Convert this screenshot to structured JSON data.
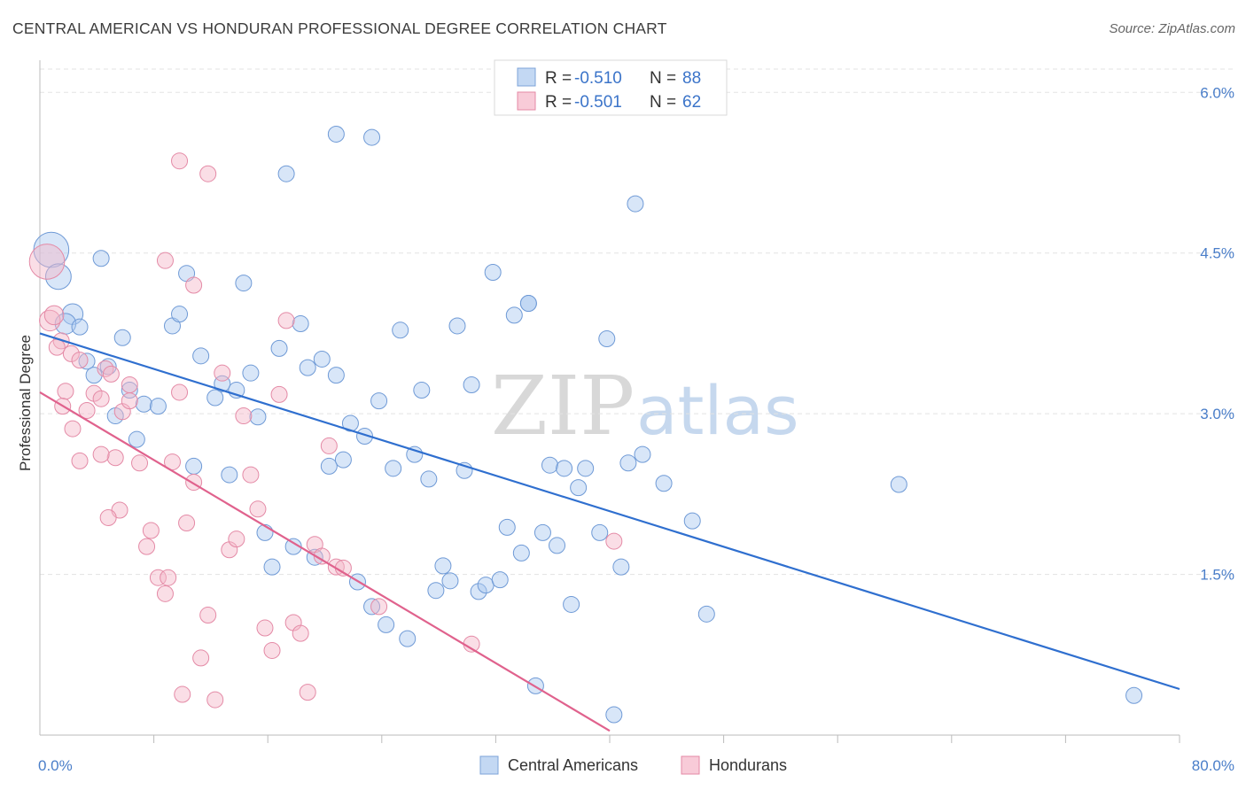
{
  "header": {
    "title": "CENTRAL AMERICAN VS HONDURAN PROFESSIONAL DEGREE CORRELATION CHART",
    "source": "Source: ZipAtlas.com"
  },
  "watermark": {
    "zip": "ZIP",
    "atlas": "atlas"
  },
  "legend": {
    "rows": [
      {
        "r_label": "R = ",
        "r_value": "-0.510",
        "n_label": "N = ",
        "n_value": "88",
        "color": "#a9c7ef"
      },
      {
        "r_label": "R = ",
        "r_value": "-0.501",
        "n_label": "N = ",
        "n_value": "62",
        "color": "#f4b6c8"
      }
    ]
  },
  "bottom_legend": [
    {
      "label": "Central Americans",
      "color": "#a9c7ef"
    },
    {
      "label": "Hondurans",
      "color": "#f4b6c8"
    }
  ],
  "chart_data": {
    "type": "scatter",
    "title": "CENTRAL AMERICAN VS HONDURAN PROFESSIONAL DEGREE CORRELATION CHART",
    "ylabel": "Professional Degree",
    "xlabel": "",
    "xlim": [
      0,
      80
    ],
    "ylim": [
      0,
      6.3
    ],
    "x_tick_labels": [
      {
        "value": 0,
        "label": "0.0%"
      },
      {
        "value": 80,
        "label": "80.0%"
      }
    ],
    "x_minor_ticks": [
      8,
      16,
      24,
      32,
      40,
      48,
      56,
      64,
      72,
      80
    ],
    "y_tick_labels": [
      {
        "value": 1.5,
        "label": "1.5%"
      },
      {
        "value": 3.0,
        "label": "3.0%"
      },
      {
        "value": 4.5,
        "label": "4.5%"
      },
      {
        "value": 6.0,
        "label": "6.0%"
      }
    ],
    "grid": true,
    "legend_position": "top-center",
    "series": [
      {
        "name": "Central Americans",
        "color": "#a9c7ef",
        "stroke": "#6f9ad6",
        "trend": {
          "x": [
            0,
            80
          ],
          "y": [
            3.75,
            0.43
          ],
          "color": "#2f6fcf"
        },
        "points": [
          [
            0.8,
            4.53,
            2.2
          ],
          [
            1.3,
            4.28,
            1.6
          ],
          [
            2.3,
            3.93,
            1.3
          ],
          [
            1.8,
            3.84,
            1.3
          ],
          [
            2.8,
            3.81,
            1
          ],
          [
            4.3,
            4.45,
            1
          ],
          [
            5.8,
            3.71,
            1
          ],
          [
            3.3,
            3.49,
            1
          ],
          [
            4.8,
            3.44,
            1
          ],
          [
            3.8,
            3.36,
            1
          ],
          [
            6.3,
            3.22,
            1
          ],
          [
            7.3,
            3.09,
            1
          ],
          [
            8.3,
            3.07,
            1
          ],
          [
            5.3,
            2.98,
            1
          ],
          [
            6.8,
            2.76,
            1
          ],
          [
            9.3,
            3.82,
            1
          ],
          [
            9.8,
            3.93,
            1
          ],
          [
            10.3,
            4.31,
            1
          ],
          [
            10.8,
            2.51,
            1
          ],
          [
            11.3,
            3.54,
            1
          ],
          [
            12.3,
            3.15,
            1
          ],
          [
            12.8,
            3.28,
            1
          ],
          [
            13.3,
            2.43,
            1
          ],
          [
            13.8,
            3.22,
            1
          ],
          [
            14.3,
            4.22,
            1
          ],
          [
            14.8,
            3.38,
            1
          ],
          [
            15.3,
            2.97,
            1
          ],
          [
            15.8,
            1.89,
            1
          ],
          [
            16.3,
            1.57,
            1
          ],
          [
            16.8,
            3.61,
            1
          ],
          [
            17.3,
            5.24,
            1
          ],
          [
            17.8,
            1.76,
            1
          ],
          [
            18.3,
            3.84,
            1
          ],
          [
            18.8,
            3.43,
            1
          ],
          [
            19.3,
            1.66,
            1
          ],
          [
            19.8,
            3.51,
            1
          ],
          [
            20.3,
            2.51,
            1
          ],
          [
            20.8,
            3.36,
            1
          ],
          [
            21.3,
            2.57,
            1
          ],
          [
            21.8,
            2.91,
            1
          ],
          [
            22.3,
            1.43,
            1
          ],
          [
            22.8,
            2.79,
            1
          ],
          [
            23.3,
            1.2,
            1
          ],
          [
            23.8,
            3.12,
            1
          ],
          [
            24.3,
            1.03,
            1
          ],
          [
            24.8,
            2.49,
            1
          ],
          [
            25.3,
            3.78,
            1
          ],
          [
            25.8,
            0.9,
            1
          ],
          [
            26.3,
            2.62,
            1
          ],
          [
            26.8,
            3.22,
            1
          ],
          [
            27.3,
            2.39,
            1
          ],
          [
            27.8,
            1.35,
            1
          ],
          [
            28.3,
            1.58,
            1
          ],
          [
            28.8,
            1.44,
            1
          ],
          [
            29.3,
            3.82,
            1
          ],
          [
            29.8,
            2.47,
            1
          ],
          [
            30.3,
            3.27,
            1
          ],
          [
            30.8,
            1.34,
            1
          ],
          [
            31.3,
            1.4,
            1
          ],
          [
            32.3,
            1.45,
            1
          ],
          [
            31.8,
            4.32,
            1
          ],
          [
            32.8,
            1.94,
            1
          ],
          [
            33.3,
            3.92,
            1
          ],
          [
            33.8,
            1.7,
            1
          ],
          [
            34.3,
            4.03,
            1
          ],
          [
            34.8,
            0.46,
            1
          ],
          [
            35.3,
            1.89,
            1
          ],
          [
            35.8,
            2.52,
            1
          ],
          [
            36.3,
            1.77,
            1
          ],
          [
            36.8,
            2.49,
            1
          ],
          [
            37.3,
            1.22,
            1
          ],
          [
            37.8,
            2.31,
            1
          ],
          [
            38.3,
            2.49,
            1
          ],
          [
            39.3,
            1.89,
            1
          ],
          [
            39.8,
            3.7,
            1
          ],
          [
            40.3,
            0.19,
            1
          ],
          [
            40.8,
            1.57,
            1
          ],
          [
            41.3,
            2.54,
            1
          ],
          [
            41.8,
            4.96,
            1
          ],
          [
            42.3,
            2.62,
            1
          ],
          [
            43.8,
            2.35,
            1
          ],
          [
            45.8,
            2.0,
            1
          ],
          [
            46.8,
            1.13,
            1
          ],
          [
            20.8,
            5.61,
            1
          ],
          [
            23.3,
            5.58,
            1
          ],
          [
            60.3,
            2.34,
            1
          ],
          [
            76.8,
            0.37,
            1
          ],
          [
            34.3,
            4.03,
            1
          ]
        ]
      },
      {
        "name": "Hondurans",
        "color": "#f4b6c8",
        "stroke": "#e48aa6",
        "trend": {
          "x": [
            0,
            40
          ],
          "y": [
            3.2,
            0.04
          ],
          "color": "#e0628d"
        },
        "points": [
          [
            0.5,
            4.42,
            2.2
          ],
          [
            0.7,
            3.87,
            1.3
          ],
          [
            1.0,
            3.92,
            1.2
          ],
          [
            1.5,
            3.68,
            1
          ],
          [
            1.2,
            3.62,
            1
          ],
          [
            2.2,
            3.56,
            1
          ],
          [
            2.8,
            3.5,
            1
          ],
          [
            1.8,
            3.21,
            1
          ],
          [
            1.6,
            3.07,
            1
          ],
          [
            2.3,
            2.86,
            1
          ],
          [
            3.3,
            3.03,
            1
          ],
          [
            3.8,
            3.19,
            1
          ],
          [
            4.3,
            3.14,
            1
          ],
          [
            4.6,
            3.42,
            1
          ],
          [
            5.0,
            3.37,
            1
          ],
          [
            5.3,
            2.59,
            1
          ],
          [
            5.8,
            3.02,
            1
          ],
          [
            6.3,
            3.12,
            1
          ],
          [
            2.8,
            2.56,
            1
          ],
          [
            4.3,
            2.62,
            1
          ],
          [
            5.6,
            2.1,
            1
          ],
          [
            4.8,
            2.03,
            1
          ],
          [
            6.3,
            3.27,
            1
          ],
          [
            7.0,
            2.54,
            1
          ],
          [
            7.5,
            1.76,
            1
          ],
          [
            7.8,
            1.91,
            1
          ],
          [
            8.3,
            1.47,
            1
          ],
          [
            8.8,
            1.32,
            1
          ],
          [
            9.0,
            1.47,
            1
          ],
          [
            9.3,
            2.55,
            1
          ],
          [
            9.8,
            3.2,
            1
          ],
          [
            10.3,
            1.98,
            1
          ],
          [
            10.8,
            2.36,
            1
          ],
          [
            11.3,
            0.72,
            1
          ],
          [
            11.8,
            1.12,
            1
          ],
          [
            12.3,
            0.33,
            1
          ],
          [
            12.8,
            3.38,
            1
          ],
          [
            13.3,
            1.73,
            1
          ],
          [
            13.8,
            1.83,
            1
          ],
          [
            14.3,
            2.98,
            1
          ],
          [
            14.8,
            2.43,
            1
          ],
          [
            15.3,
            2.11,
            1
          ],
          [
            15.8,
            1.0,
            1
          ],
          [
            16.3,
            0.79,
            1
          ],
          [
            16.8,
            3.18,
            1
          ],
          [
            17.3,
            3.87,
            1
          ],
          [
            17.8,
            1.05,
            1
          ],
          [
            18.3,
            0.95,
            1
          ],
          [
            18.8,
            0.4,
            1
          ],
          [
            19.3,
            1.78,
            1
          ],
          [
            19.8,
            1.67,
            1
          ],
          [
            20.3,
            2.7,
            1
          ],
          [
            20.8,
            1.57,
            1
          ],
          [
            21.3,
            1.56,
            1
          ],
          [
            23.8,
            1.2,
            1
          ],
          [
            30.3,
            0.85,
            1
          ],
          [
            40.3,
            1.81,
            1
          ],
          [
            10.0,
            0.38,
            1
          ],
          [
            9.8,
            5.36,
            1
          ],
          [
            11.8,
            5.24,
            1
          ],
          [
            8.8,
            4.43,
            1
          ],
          [
            10.8,
            4.2,
            1
          ]
        ]
      }
    ],
    "r_values": [
      -0.51,
      -0.501
    ],
    "n_values": [
      88,
      62
    ]
  }
}
